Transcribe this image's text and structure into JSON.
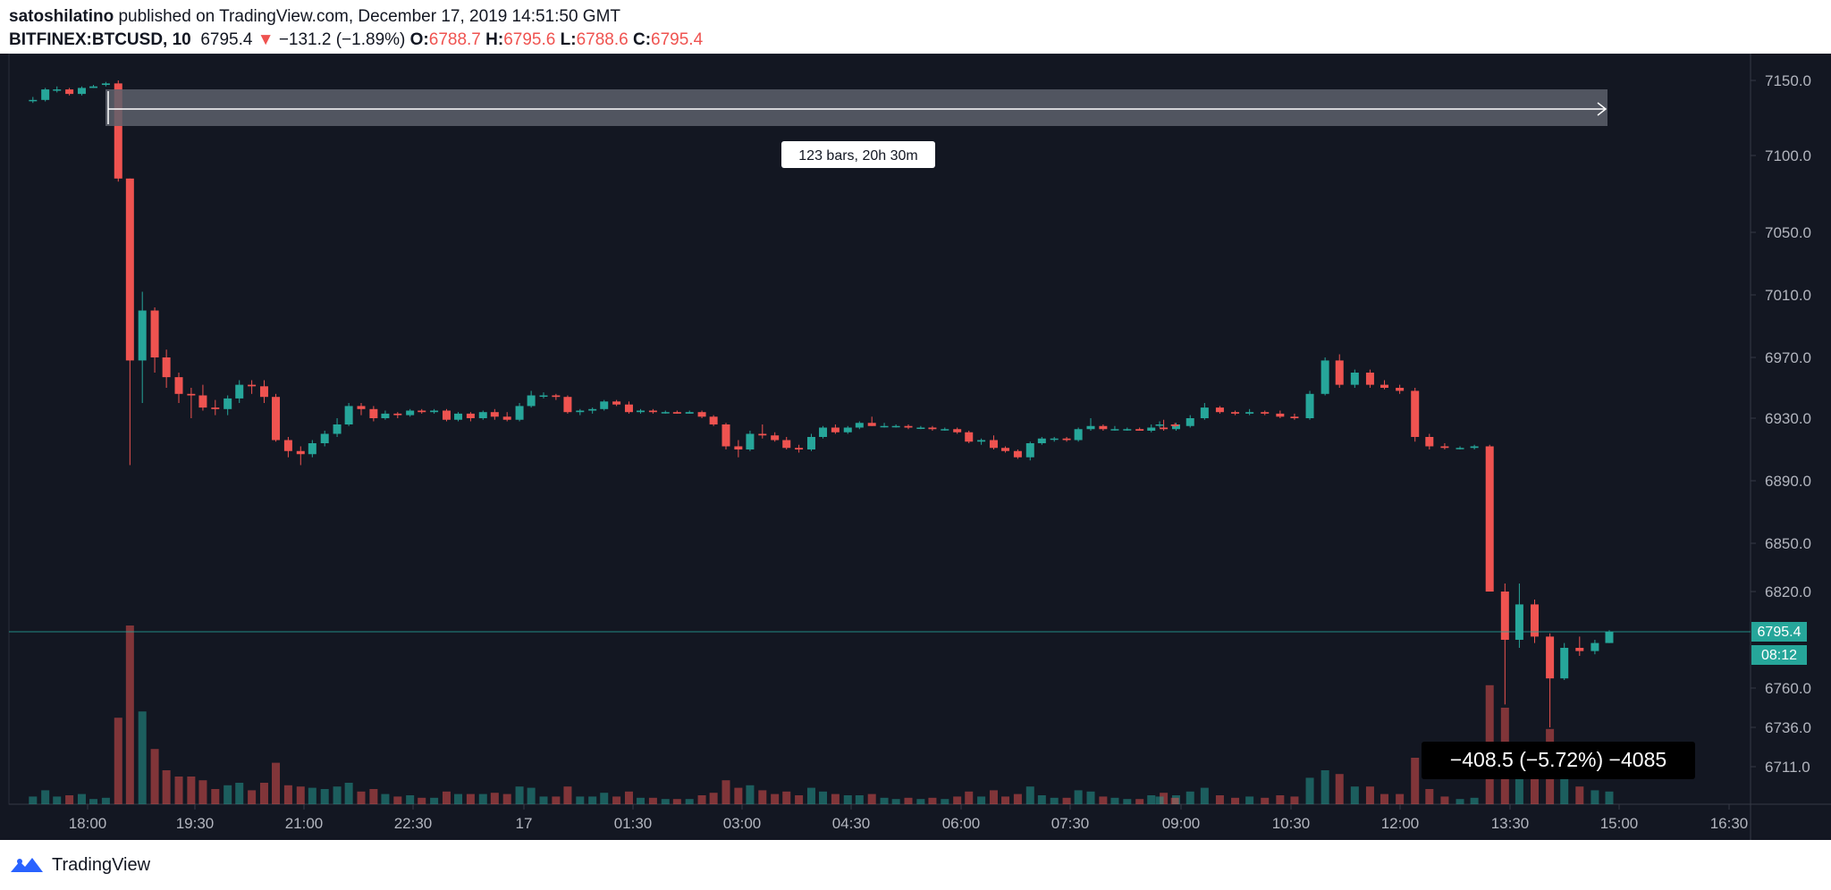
{
  "header": {
    "publisher": "satoshilatino",
    "published_text": " published on TradingView.com, December 17, 2019 14:51:50 GMT",
    "symbol": "BITFINEX:BTCUSD, 10",
    "last": "6795.4",
    "change_arrow": "▼",
    "change": "−131.2 (−1.89%)",
    "o_label": "O:",
    "o_value": "6788.7",
    "h_label": "H:",
    "h_value": "6795.6",
    "l_label": "L:",
    "l_value": "6788.6",
    "c_label": "C:",
    "c_value": "6795.4"
  },
  "colors": {
    "background": "#131722",
    "up": "#26a69a",
    "down": "#ef5350",
    "axis_text": "#b2b5be",
    "range_fill": "#5d606b",
    "price_label_bg": "#26a69a"
  },
  "annotations": {
    "range_label": "123 bars, 20h 30m",
    "measure_label": "−408.5 (−5.72%) −4085"
  },
  "price_label": {
    "value": "6795.4",
    "countdown": "08:12"
  },
  "footer": {
    "brand": "TradingView",
    "logo_icon": "tradingview-logo-icon"
  },
  "chart_data": {
    "type": "candlestick",
    "symbol": "BITFINEX:BTCUSD",
    "interval": "10",
    "y_ticks": [
      "7150.0",
      "7100.0",
      "7050.0",
      "7010.0",
      "6970.0",
      "6930.0",
      "6890.0",
      "6850.0",
      "6820.0",
      "6795.4",
      "6760.0",
      "6736.0",
      "6711.0"
    ],
    "y_tick_values": [
      7150,
      7100,
      7050,
      7010,
      6970,
      6930,
      6890,
      6850,
      6820,
      6760,
      6736,
      6711
    ],
    "x_ticks": [
      "18:00",
      "19:30",
      "21:00",
      "22:30",
      "17",
      "01:30",
      "03:00",
      "04:30",
      "06:00",
      "07:30",
      "09:00",
      "10:30",
      "12:00",
      "13:30",
      "15:00",
      "16:30"
    ],
    "x_tick_hours": [
      18,
      19.5,
      21,
      22.5,
      24,
      25.5,
      27,
      28.5,
      30,
      31.5,
      33,
      34.5,
      36,
      37.5,
      39,
      40.5
    ],
    "candles": [
      {
        "t": 17.25,
        "o": 7137,
        "h": 7139,
        "l": 7135,
        "c": 7137
      },
      {
        "t": 17.42,
        "o": 7137,
        "h": 7145,
        "l": 7136,
        "c": 7144
      },
      {
        "t": 17.58,
        "o": 7144,
        "h": 7146,
        "l": 7142,
        "c": 7144
      },
      {
        "t": 17.75,
        "o": 7144,
        "h": 7145,
        "l": 7140,
        "c": 7141
      },
      {
        "t": 17.92,
        "o": 7141,
        "h": 7146,
        "l": 7140,
        "c": 7145
      },
      {
        "t": 18.08,
        "o": 7145,
        "h": 7147,
        "l": 7145,
        "c": 7146
      },
      {
        "t": 18.25,
        "o": 7147,
        "h": 7149,
        "l": 7146,
        "c": 7148
      },
      {
        "t": 18.42,
        "o": 7148,
        "h": 7150,
        "l": 7083,
        "c": 7085
      },
      {
        "t": 18.58,
        "o": 7085,
        "h": 7085,
        "l": 6900,
        "c": 6968
      },
      {
        "t": 18.75,
        "o": 6968,
        "h": 7012,
        "l": 6940,
        "c": 7000
      },
      {
        "t": 18.92,
        "o": 7000,
        "h": 7002,
        "l": 6960,
        "c": 6970
      },
      {
        "t": 19.08,
        "o": 6970,
        "h": 6975,
        "l": 6950,
        "c": 6957
      },
      {
        "t": 19.25,
        "o": 6957,
        "h": 6960,
        "l": 6940,
        "c": 6946
      },
      {
        "t": 19.42,
        "o": 6946,
        "h": 6950,
        "l": 6930,
        "c": 6945
      },
      {
        "t": 19.58,
        "o": 6945,
        "h": 6952,
        "l": 6935,
        "c": 6937
      },
      {
        "t": 19.75,
        "o": 6937,
        "h": 6942,
        "l": 6932,
        "c": 6936
      },
      {
        "t": 19.92,
        "o": 6936,
        "h": 6945,
        "l": 6932,
        "c": 6943
      },
      {
        "t": 20.08,
        "o": 6943,
        "h": 6955,
        "l": 6940,
        "c": 6952
      },
      {
        "t": 20.25,
        "o": 6952,
        "h": 6955,
        "l": 6946,
        "c": 6951
      },
      {
        "t": 20.42,
        "o": 6951,
        "h": 6955,
        "l": 6940,
        "c": 6944
      },
      {
        "t": 20.58,
        "o": 6944,
        "h": 6946,
        "l": 6915,
        "c": 6916
      },
      {
        "t": 20.75,
        "o": 6916,
        "h": 6918,
        "l": 6905,
        "c": 6909
      },
      {
        "t": 20.92,
        "o": 6909,
        "h": 6912,
        "l": 6900,
        "c": 6907
      },
      {
        "t": 21.08,
        "o": 6907,
        "h": 6916,
        "l": 6905,
        "c": 6914
      },
      {
        "t": 21.25,
        "o": 6914,
        "h": 6922,
        "l": 6912,
        "c": 6920
      },
      {
        "t": 21.42,
        "o": 6920,
        "h": 6930,
        "l": 6918,
        "c": 6926
      },
      {
        "t": 21.58,
        "o": 6926,
        "h": 6940,
        "l": 6925,
        "c": 6938
      },
      {
        "t": 21.75,
        "o": 6938,
        "h": 6940,
        "l": 6932,
        "c": 6936
      },
      {
        "t": 21.92,
        "o": 6936,
        "h": 6938,
        "l": 6928,
        "c": 6930
      },
      {
        "t": 22.08,
        "o": 6930,
        "h": 6935,
        "l": 6929,
        "c": 6933
      },
      {
        "t": 22.25,
        "o": 6933,
        "h": 6934,
        "l": 6930,
        "c": 6932
      },
      {
        "t": 22.42,
        "o": 6932,
        "h": 6936,
        "l": 6931,
        "c": 6935
      },
      {
        "t": 22.58,
        "o": 6935,
        "h": 6936,
        "l": 6933,
        "c": 6934
      },
      {
        "t": 22.75,
        "o": 6934,
        "h": 6936,
        "l": 6933,
        "c": 6935
      },
      {
        "t": 22.92,
        "o": 6935,
        "h": 6936,
        "l": 6928,
        "c": 6929
      },
      {
        "t": 23.08,
        "o": 6929,
        "h": 6934,
        "l": 6928,
        "c": 6933
      },
      {
        "t": 23.25,
        "o": 6933,
        "h": 6934,
        "l": 6928,
        "c": 6930
      },
      {
        "t": 23.42,
        "o": 6930,
        "h": 6935,
        "l": 6929,
        "c": 6934
      },
      {
        "t": 23.58,
        "o": 6934,
        "h": 6936,
        "l": 6929,
        "c": 6931
      },
      {
        "t": 23.75,
        "o": 6931,
        "h": 6934,
        "l": 6928,
        "c": 6929
      },
      {
        "t": 23.92,
        "o": 6929,
        "h": 6940,
        "l": 6928,
        "c": 6938
      },
      {
        "t": 24.08,
        "o": 6938,
        "h": 6948,
        "l": 6937,
        "c": 6945
      },
      {
        "t": 24.25,
        "o": 6945,
        "h": 6947,
        "l": 6943,
        "c": 6945
      },
      {
        "t": 24.42,
        "o": 6945,
        "h": 6946,
        "l": 6942,
        "c": 6944
      },
      {
        "t": 24.58,
        "o": 6944,
        "h": 6945,
        "l": 6933,
        "c": 6934
      },
      {
        "t": 24.75,
        "o": 6934,
        "h": 6936,
        "l": 6932,
        "c": 6935
      },
      {
        "t": 24.92,
        "o": 6935,
        "h": 6937,
        "l": 6933,
        "c": 6936
      },
      {
        "t": 25.08,
        "o": 6936,
        "h": 6942,
        "l": 6935,
        "c": 6941
      },
      {
        "t": 25.25,
        "o": 6941,
        "h": 6942,
        "l": 6938,
        "c": 6939
      },
      {
        "t": 25.42,
        "o": 6939,
        "h": 6941,
        "l": 6933,
        "c": 6934
      },
      {
        "t": 25.58,
        "o": 6934,
        "h": 6936,
        "l": 6933,
        "c": 6935
      },
      {
        "t": 25.75,
        "o": 6935,
        "h": 6936,
        "l": 6933,
        "c": 6934
      },
      {
        "t": 25.92,
        "o": 6934,
        "h": 6935,
        "l": 6933,
        "c": 6934
      },
      {
        "t": 26.08,
        "o": 6934,
        "h": 6935,
        "l": 6933,
        "c": 6933
      },
      {
        "t": 26.25,
        "o": 6933,
        "h": 6935,
        "l": 6933,
        "c": 6934
      },
      {
        "t": 26.42,
        "o": 6934,
        "h": 6935,
        "l": 6930,
        "c": 6931
      },
      {
        "t": 26.58,
        "o": 6931,
        "h": 6932,
        "l": 6925,
        "c": 6926
      },
      {
        "t": 26.75,
        "o": 6926,
        "h": 6927,
        "l": 6910,
        "c": 6912
      },
      {
        "t": 26.92,
        "o": 6912,
        "h": 6916,
        "l": 6905,
        "c": 6910
      },
      {
        "t": 27.08,
        "o": 6910,
        "h": 6922,
        "l": 6909,
        "c": 6920
      },
      {
        "t": 27.25,
        "o": 6920,
        "h": 6926,
        "l": 6917,
        "c": 6919
      },
      {
        "t": 27.42,
        "o": 6919,
        "h": 6921,
        "l": 6915,
        "c": 6916
      },
      {
        "t": 27.58,
        "o": 6916,
        "h": 6918,
        "l": 6910,
        "c": 6911
      },
      {
        "t": 27.75,
        "o": 6911,
        "h": 6913,
        "l": 6908,
        "c": 6910
      },
      {
        "t": 27.92,
        "o": 6910,
        "h": 6920,
        "l": 6909,
        "c": 6918
      },
      {
        "t": 28.08,
        "o": 6918,
        "h": 6925,
        "l": 6917,
        "c": 6924
      },
      {
        "t": 28.25,
        "o": 6924,
        "h": 6926,
        "l": 6920,
        "c": 6921
      },
      {
        "t": 28.42,
        "o": 6921,
        "h": 6925,
        "l": 6920,
        "c": 6924
      },
      {
        "t": 28.58,
        "o": 6924,
        "h": 6928,
        "l": 6923,
        "c": 6927
      },
      {
        "t": 28.75,
        "o": 6927,
        "h": 6931,
        "l": 6925,
        "c": 6925
      },
      {
        "t": 28.92,
        "o": 6925,
        "h": 6927,
        "l": 6924,
        "c": 6925
      },
      {
        "t": 29.08,
        "o": 6925,
        "h": 6926,
        "l": 6924,
        "c": 6925
      },
      {
        "t": 29.25,
        "o": 6925,
        "h": 6926,
        "l": 6923,
        "c": 6924
      },
      {
        "t": 29.42,
        "o": 6924,
        "h": 6925,
        "l": 6923,
        "c": 6924
      },
      {
        "t": 29.58,
        "o": 6924,
        "h": 6925,
        "l": 6922,
        "c": 6923
      },
      {
        "t": 29.75,
        "o": 6923,
        "h": 6924,
        "l": 6922,
        "c": 6923
      },
      {
        "t": 29.92,
        "o": 6923,
        "h": 6924,
        "l": 6920,
        "c": 6921
      },
      {
        "t": 30.08,
        "o": 6921,
        "h": 6922,
        "l": 6914,
        "c": 6915
      },
      {
        "t": 30.25,
        "o": 6915,
        "h": 6917,
        "l": 6913,
        "c": 6916
      },
      {
        "t": 30.42,
        "o": 6916,
        "h": 6919,
        "l": 6910,
        "c": 6911
      },
      {
        "t": 30.58,
        "o": 6911,
        "h": 6912,
        "l": 6908,
        "c": 6909
      },
      {
        "t": 30.75,
        "o": 6909,
        "h": 6910,
        "l": 6904,
        "c": 6905
      },
      {
        "t": 30.92,
        "o": 6905,
        "h": 6915,
        "l": 6903,
        "c": 6914
      },
      {
        "t": 31.08,
        "o": 6914,
        "h": 6918,
        "l": 6913,
        "c": 6917
      },
      {
        "t": 31.25,
        "o": 6917,
        "h": 6918,
        "l": 6915,
        "c": 6917
      },
      {
        "t": 31.42,
        "o": 6917,
        "h": 6918,
        "l": 6915,
        "c": 6916
      },
      {
        "t": 31.58,
        "o": 6916,
        "h": 6924,
        "l": 6915,
        "c": 6923
      },
      {
        "t": 31.75,
        "o": 6923,
        "h": 6930,
        "l": 6922,
        "c": 6925
      },
      {
        "t": 31.92,
        "o": 6925,
        "h": 6926,
        "l": 6922,
        "c": 6923
      },
      {
        "t": 32.08,
        "o": 6923,
        "h": 6925,
        "l": 6922,
        "c": 6923
      },
      {
        "t": 32.25,
        "o": 6923,
        "h": 6924,
        "l": 6922,
        "c": 6923
      },
      {
        "t": 32.42,
        "o": 6923,
        "h": 6924,
        "l": 6922,
        "c": 6922
      },
      {
        "t": 32.58,
        "o": 6922,
        "h": 6926,
        "l": 6921,
        "c": 6924
      },
      {
        "t": 32.75,
        "o": 6924,
        "h": 6929,
        "l": 6922,
        "c": 6923
      },
      {
        "t": 32.92,
        "o": 6923,
        "h": 6927,
        "l": 6922,
        "c": 6926
      }
    ],
    "candles_note_hidden": false
  }
}
